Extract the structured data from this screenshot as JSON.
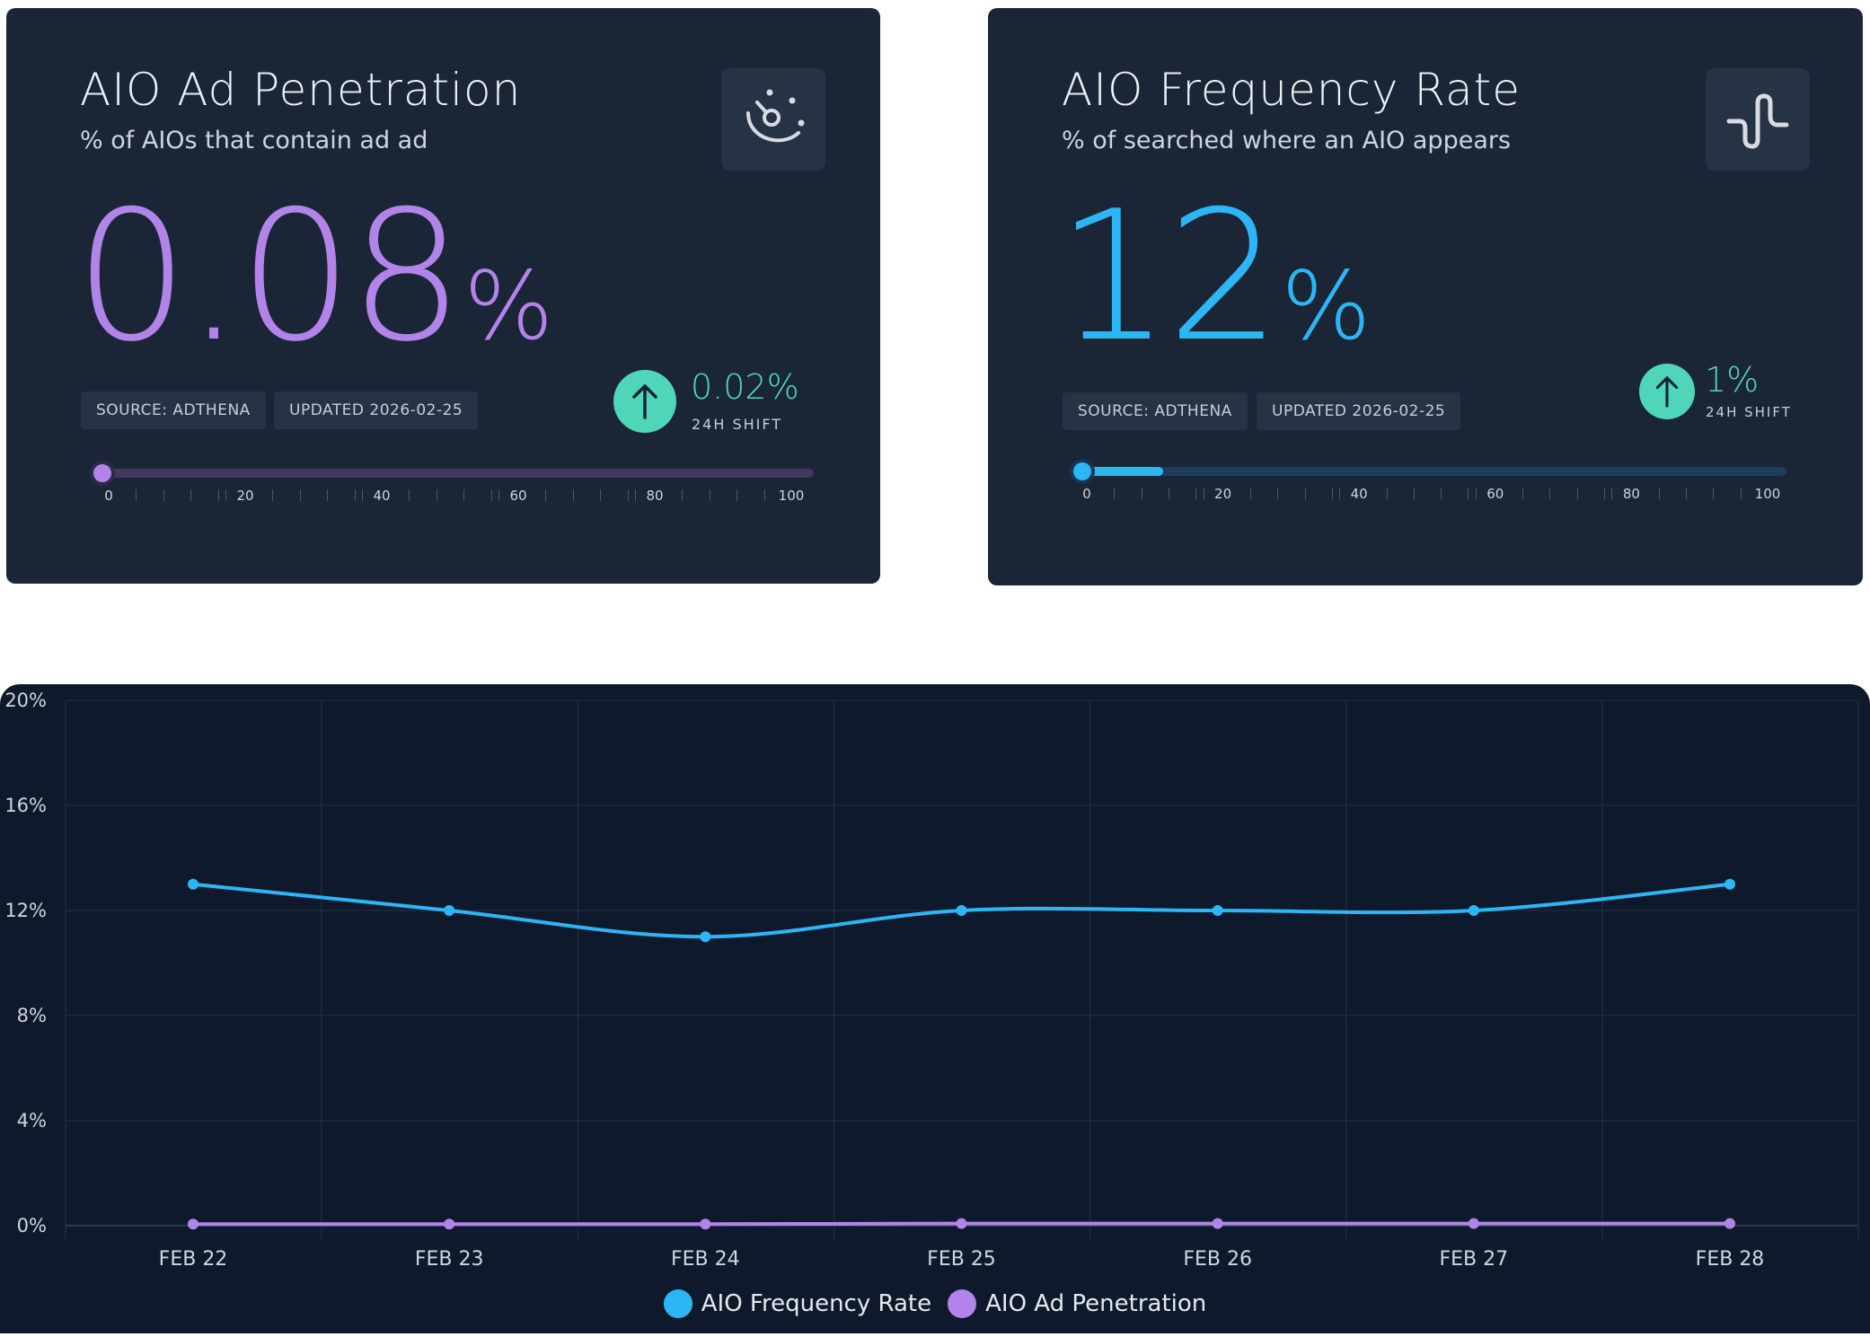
{
  "cards": [
    {
      "title": "AIO Ad Penetration",
      "subtitle": "% of AIOs that contain ad ad",
      "value": "0.08",
      "unit": "%",
      "source": "SOURCE: ADTHENA",
      "updated": "UPDATED 2026-02-25",
      "shift_value": "0.02%",
      "shift_label": "24H SHIFT",
      "shift_direction": "up",
      "progress_percent": 0.08,
      "icon": "gauge-icon",
      "accent": "#b283e8"
    },
    {
      "title": "AIO Frequency Rate",
      "subtitle": "% of searched where an AIO appears",
      "value": "12",
      "unit": "%",
      "source": "SOURCE: ADTHENA",
      "updated": "UPDATED 2026-02-25",
      "shift_value": "1%",
      "shift_label": "24H SHIFT",
      "shift_direction": "up",
      "progress_percent": 12,
      "icon": "wave-icon",
      "accent": "#2db6f5"
    }
  ],
  "scale_labels": [
    "0",
    "20",
    "40",
    "60",
    "80",
    "100"
  ],
  "chart_data": {
    "type": "line",
    "x": [
      "FEB 22",
      "FEB 23",
      "FEB 24",
      "FEB 25",
      "FEB 26",
      "FEB 27",
      "FEB 28"
    ],
    "y_ticks": [
      "0%",
      "4%",
      "8%",
      "12%",
      "16%",
      "20%"
    ],
    "ylim": [
      0,
      20
    ],
    "grid": true,
    "legend_position": "bottom",
    "series": [
      {
        "name": "AIO Frequency Rate",
        "color": "#2db6f5",
        "values": [
          13,
          12,
          11,
          12,
          12,
          12,
          13
        ]
      },
      {
        "name": "AIO Ad Penetration",
        "color": "#b283e8",
        "values": [
          0.06,
          0.06,
          0.06,
          0.08,
          0.08,
          0.08,
          0.08
        ]
      }
    ]
  }
}
